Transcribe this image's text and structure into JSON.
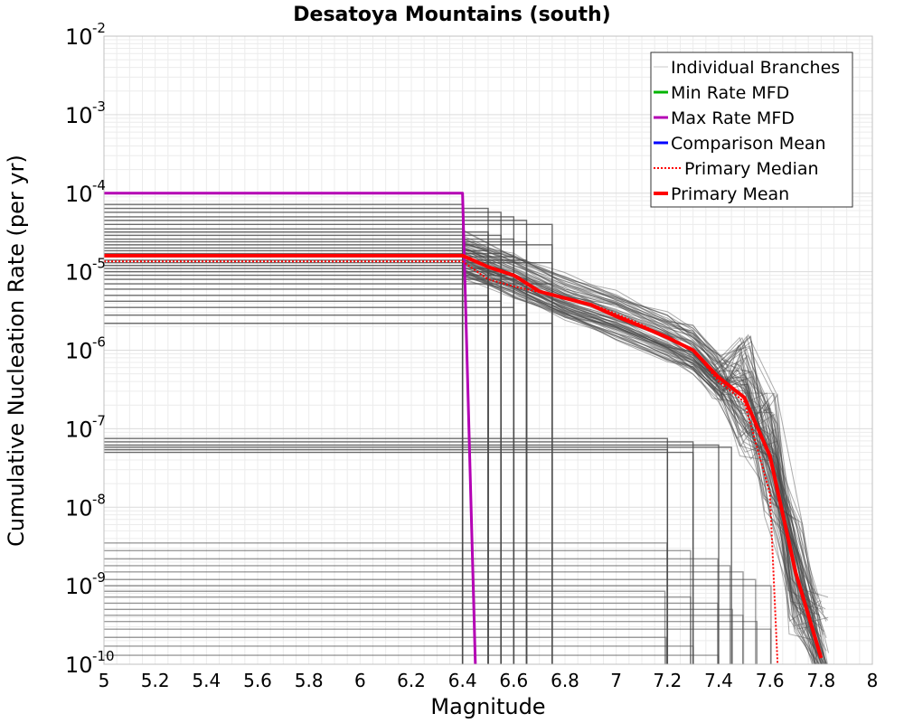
{
  "chart_data": {
    "type": "line",
    "title": "Desatoya Mountains (south)",
    "xlabel": "Magnitude",
    "ylabel": "Cumulative Nucleation Rate (per yr)",
    "yscale": "log",
    "xlim": [
      5,
      8
    ],
    "ylim": [
      1e-10,
      0.01
    ],
    "grid": true,
    "legend_position": "top-right",
    "x_ticks": [
      {
        "value": 5,
        "label": "5"
      },
      {
        "value": 5.2,
        "label": "5.2"
      },
      {
        "value": 5.4,
        "label": "5.4"
      },
      {
        "value": 5.6,
        "label": "5.6"
      },
      {
        "value": 5.8,
        "label": "5.8"
      },
      {
        "value": 6,
        "label": "6"
      },
      {
        "value": 6.2,
        "label": "6.2"
      },
      {
        "value": 6.4,
        "label": "6.4"
      },
      {
        "value": 6.6,
        "label": "6.6"
      },
      {
        "value": 6.8,
        "label": "6.8"
      },
      {
        "value": 7,
        "label": "7"
      },
      {
        "value": 7.2,
        "label": "7.2"
      },
      {
        "value": 7.4,
        "label": "7.4"
      },
      {
        "value": 7.6,
        "label": "7.6"
      },
      {
        "value": 7.8,
        "label": "7.8"
      },
      {
        "value": 8,
        "label": "8"
      }
    ],
    "y_ticks": [
      {
        "exp": -10,
        "base": "10",
        "sup": "-10"
      },
      {
        "exp": -9,
        "base": "10",
        "sup": "-9"
      },
      {
        "exp": -8,
        "base": "10",
        "sup": "-8"
      },
      {
        "exp": -7,
        "base": "10",
        "sup": "-7"
      },
      {
        "exp": -6,
        "base": "10",
        "sup": "-6"
      },
      {
        "exp": -5,
        "base": "10",
        "sup": "-5"
      },
      {
        "exp": -4,
        "base": "10",
        "sup": "-4"
      },
      {
        "exp": -3,
        "base": "10",
        "sup": "-3"
      },
      {
        "exp": -2,
        "base": "10",
        "sup": "-2"
      }
    ],
    "legend": [
      {
        "label": "Individual Branches",
        "color": "#c8c8c8",
        "style": "thin"
      },
      {
        "label": "Min Rate MFD",
        "color": "#00b400",
        "style": "solid"
      },
      {
        "label": "Max Rate MFD",
        "color": "#b400b4",
        "style": "solid"
      },
      {
        "label": "Comparison Mean",
        "color": "#0000ff",
        "style": "solid"
      },
      {
        "label": "Primary Median",
        "color": "#ff0000",
        "style": "dotted"
      },
      {
        "label": "Primary Mean",
        "color": "#ff0000",
        "style": "thick"
      }
    ],
    "series": [
      {
        "name": "Max Rate MFD",
        "color": "#b400b4",
        "points": [
          [
            5.0,
            0.0001
          ],
          [
            6.4,
            0.0001
          ],
          [
            6.45,
            1e-10
          ]
        ]
      },
      {
        "name": "Primary Median",
        "color": "#ff0000",
        "style": "dotted",
        "points": [
          [
            5.0,
            1.35e-05
          ],
          [
            6.4,
            1.35e-05
          ],
          [
            6.5,
            8e-06
          ],
          [
            6.6,
            6.5e-06
          ],
          [
            6.7,
            5.5e-06
          ],
          [
            6.8,
            4.6e-06
          ],
          [
            6.9,
            3.9e-06
          ],
          [
            7.0,
            2.9e-06
          ],
          [
            7.1,
            2.1e-06
          ],
          [
            7.2,
            1.45e-06
          ],
          [
            7.3,
            1e-06
          ],
          [
            7.4,
            4e-07
          ],
          [
            7.5,
            2.2e-07
          ],
          [
            7.6,
            1.5e-08
          ],
          [
            7.63,
            1e-10
          ]
        ]
      },
      {
        "name": "Primary Mean",
        "color": "#ff0000",
        "style": "thick",
        "points": [
          [
            5.0,
            1.6e-05
          ],
          [
            6.4,
            1.6e-05
          ],
          [
            6.5,
            1.15e-05
          ],
          [
            6.6,
            9e-06
          ],
          [
            6.7,
            5.6e-06
          ],
          [
            6.8,
            4.6e-06
          ],
          [
            6.9,
            3.8e-06
          ],
          [
            7.0,
            2.7e-06
          ],
          [
            7.1,
            2e-06
          ],
          [
            7.2,
            1.45e-06
          ],
          [
            7.3,
            1e-06
          ],
          [
            7.4,
            4.5e-07
          ],
          [
            7.5,
            2.5e-07
          ],
          [
            7.6,
            4.5e-08
          ],
          [
            7.7,
            1.5e-09
          ],
          [
            7.8,
            1.2e-10
          ]
        ]
      }
    ],
    "branch_ensemble": {
      "color": "#4a4a4a",
      "groups": [
        {
          "rates": [
            7.2e-05,
            6.4e-05,
            5.7e-05,
            5e-05,
            4.5e-05,
            4e-05,
            3.5e-05,
            3.2e-05,
            2.9e-05,
            2.6e-05,
            2.4e-05,
            2.2e-05,
            2e-05,
            1.85e-05,
            1.7e-05,
            1.55e-05,
            1.4e-05,
            1.3e-05,
            1.2e-05,
            1.1e-05,
            1e-05,
            9e-06,
            8e-06,
            7e-06,
            6e-06,
            5e-06,
            4.2e-06,
            3.5e-06,
            2.8e-06,
            2.2e-06
          ],
          "drop_mags": [
            6.4,
            6.5,
            6.55,
            6.6,
            6.65,
            6.75
          ]
        },
        {
          "rates": [
            7.5e-08,
            6.8e-08,
            6.2e-08,
            5.8e-08,
            5.4e-08,
            5e-08
          ],
          "drop_mags": [
            7.2,
            7.3,
            7.4,
            7.45
          ]
        },
        {
          "rates": [
            3.5e-09,
            2.8e-09,
            2.2e-09,
            1.8e-09,
            1.5e-09,
            1.2e-09,
            1e-09,
            8.5e-10,
            7.2e-10,
            6e-10,
            5e-10,
            4.2e-10,
            3.5e-10,
            2.8e-10,
            2.2e-10,
            1.7e-10,
            1.3e-10
          ],
          "drop_mags": [
            7.2,
            7.3,
            7.4,
            7.45,
            7.5,
            7.55,
            7.6
          ]
        }
      ],
      "tail_points": [
        [
          6.4,
          1.6e-05
        ],
        [
          6.6,
          9e-06
        ],
        [
          6.8,
          4.6e-06
        ],
        [
          7.0,
          2.7e-06
        ],
        [
          7.2,
          1.45e-06
        ],
        [
          7.3,
          1e-06
        ],
        [
          7.4,
          4.5e-07
        ],
        [
          7.5,
          2.5e-07
        ],
        [
          7.6,
          4.5e-08
        ],
        [
          7.7,
          1.5e-09
        ],
        [
          7.8,
          1.2e-10
        ]
      ],
      "tail_count": 80
    }
  }
}
